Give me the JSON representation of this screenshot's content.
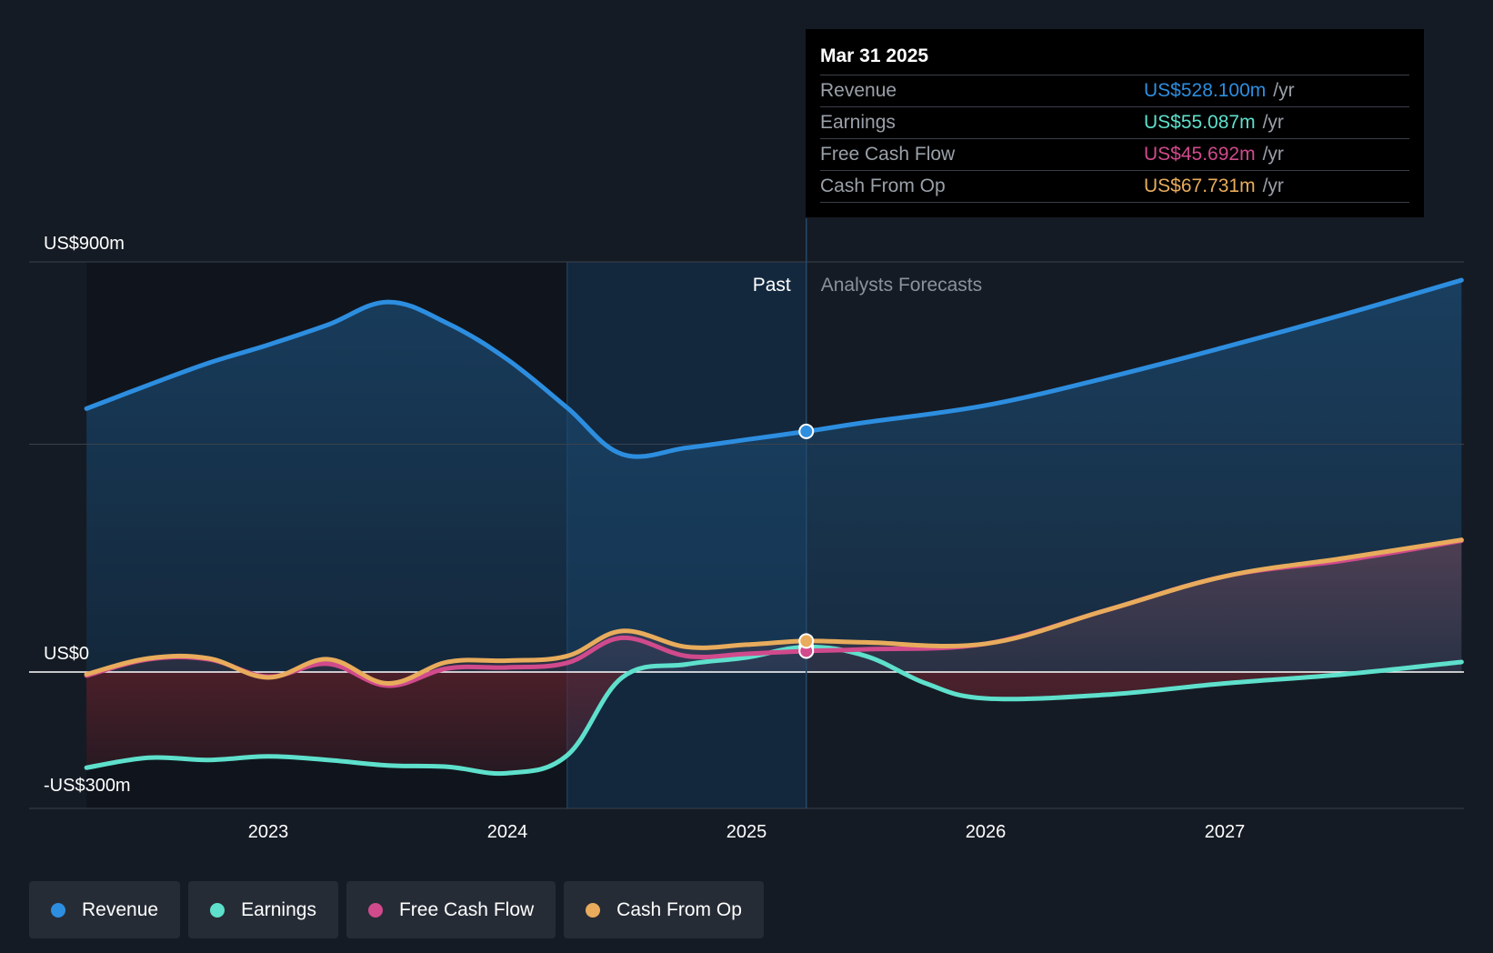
{
  "chart_data": {
    "type": "area",
    "y_axis": {
      "labels": [
        {
          "text": "US$900m",
          "value": 900
        },
        {
          "text": "US$0",
          "value": 0
        },
        {
          "text": "-US$300m",
          "value": -300
        }
      ],
      "ylim": [
        -300,
        900
      ],
      "gridlines": [
        900,
        500,
        0
      ]
    },
    "x_axis": {
      "ticks": [
        {
          "label": "2023",
          "value": 2023.0
        },
        {
          "label": "2024",
          "value": 2024.0
        },
        {
          "label": "2025",
          "value": 2025.0
        },
        {
          "label": "2026",
          "value": 2026.0
        },
        {
          "label": "2027",
          "value": 2027.0
        }
      ],
      "xlim": [
        2021.99,
        2027.99
      ]
    },
    "regions": {
      "past_label": "Past",
      "forecast_label": "Analysts Forecasts",
      "highlight_start": 2024.25,
      "divider": 2025.25
    },
    "series": [
      {
        "name": "Revenue",
        "key": "revenue",
        "color": "#2d8ee0",
        "points": [
          [
            2022.24,
            578
          ],
          [
            2022.5,
            630
          ],
          [
            2022.75,
            678
          ],
          [
            2023.0,
            718
          ],
          [
            2023.25,
            762
          ],
          [
            2023.5,
            812
          ],
          [
            2023.75,
            765
          ],
          [
            2024.0,
            686
          ],
          [
            2024.25,
            580
          ],
          [
            2024.48,
            478
          ],
          [
            2024.75,
            492
          ],
          [
            2025.0,
            510
          ],
          [
            2025.25,
            528
          ],
          [
            2025.5,
            548
          ],
          [
            2026.0,
            585
          ],
          [
            2026.5,
            645
          ],
          [
            2027.0,
            713
          ],
          [
            2027.5,
            785
          ],
          [
            2027.99,
            860
          ]
        ]
      },
      {
        "name": "Earnings",
        "key": "earnings",
        "color": "#5ee0cc",
        "points": [
          [
            2022.24,
            -210
          ],
          [
            2022.5,
            -188
          ],
          [
            2022.75,
            -193
          ],
          [
            2023.0,
            -185
          ],
          [
            2023.25,
            -193
          ],
          [
            2023.5,
            -205
          ],
          [
            2023.75,
            -208
          ],
          [
            2024.0,
            -222
          ],
          [
            2024.25,
            -183
          ],
          [
            2024.48,
            -12
          ],
          [
            2024.75,
            17
          ],
          [
            2025.0,
            32
          ],
          [
            2025.25,
            55
          ],
          [
            2025.5,
            35
          ],
          [
            2025.75,
            -25
          ],
          [
            2026.0,
            -58
          ],
          [
            2026.5,
            -50
          ],
          [
            2027.0,
            -25
          ],
          [
            2027.5,
            -5
          ],
          [
            2027.99,
            22
          ]
        ]
      },
      {
        "name": "Free Cash Flow",
        "key": "fcf",
        "color": "#d04a8c",
        "points": [
          [
            2022.24,
            -8
          ],
          [
            2022.5,
            28
          ],
          [
            2022.75,
            28
          ],
          [
            2023.0,
            -10
          ],
          [
            2023.25,
            18
          ],
          [
            2023.5,
            -30
          ],
          [
            2023.75,
            8
          ],
          [
            2024.0,
            10
          ],
          [
            2024.25,
            20
          ],
          [
            2024.48,
            75
          ],
          [
            2024.75,
            35
          ],
          [
            2025.0,
            40
          ],
          [
            2025.25,
            46
          ],
          [
            2025.5,
            50
          ],
          [
            2026.0,
            62
          ],
          [
            2026.5,
            135
          ],
          [
            2027.0,
            210
          ],
          [
            2027.5,
            245
          ],
          [
            2027.99,
            288
          ]
        ]
      },
      {
        "name": "Cash From Op",
        "key": "cfo",
        "color": "#e8ac5c",
        "points": [
          [
            2022.24,
            -5
          ],
          [
            2022.5,
            30
          ],
          [
            2022.75,
            30
          ],
          [
            2023.0,
            -12
          ],
          [
            2023.25,
            28
          ],
          [
            2023.5,
            -25
          ],
          [
            2023.75,
            22
          ],
          [
            2024.0,
            25
          ],
          [
            2024.25,
            35
          ],
          [
            2024.48,
            90
          ],
          [
            2024.75,
            55
          ],
          [
            2025.0,
            60
          ],
          [
            2025.25,
            68
          ],
          [
            2025.5,
            65
          ],
          [
            2026.0,
            62
          ],
          [
            2026.5,
            135
          ],
          [
            2027.0,
            210
          ],
          [
            2027.5,
            250
          ],
          [
            2027.99,
            290
          ]
        ]
      }
    ]
  },
  "tooltip": {
    "date": "Mar 31 2025",
    "unit": "/yr",
    "rows": [
      {
        "name": "Revenue",
        "value": "US$528.100m",
        "color": "#2d8ee0"
      },
      {
        "name": "Earnings",
        "value": "US$55.087m",
        "color": "#5ee0cc"
      },
      {
        "name": "Free Cash Flow",
        "value": "US$45.692m",
        "color": "#d04a8c"
      },
      {
        "name": "Cash From Op",
        "value": "US$67.731m",
        "color": "#e8ac5c"
      }
    ]
  },
  "legend": [
    {
      "label": "Revenue",
      "color": "#2d8ee0"
    },
    {
      "label": "Earnings",
      "color": "#5ee0cc"
    },
    {
      "label": "Free Cash Flow",
      "color": "#d04a8c"
    },
    {
      "label": "Cash From Op",
      "color": "#e8ac5c"
    }
  ]
}
